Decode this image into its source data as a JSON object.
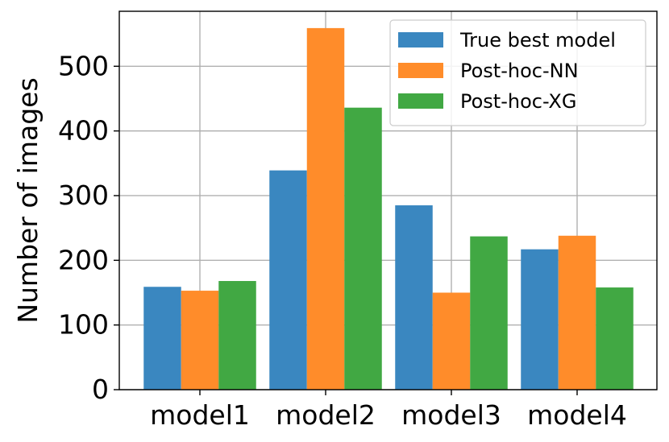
{
  "chart_data": {
    "type": "bar",
    "title": "",
    "xlabel": "",
    "ylabel": "Number of images",
    "categories": [
      "model1",
      "model2",
      "model3",
      "model4"
    ],
    "series": [
      {
        "name": "True best model",
        "color": "#3a87c0",
        "values": [
          159,
          339,
          285,
          217
        ]
      },
      {
        "name": "Post-hoc-NN",
        "color": "#ff8c2a",
        "values": [
          153,
          559,
          150,
          238
        ]
      },
      {
        "name": "Post-hoc-XG",
        "color": "#41a843",
        "values": [
          168,
          436,
          237,
          158
        ]
      }
    ],
    "ylim": [
      0,
      585
    ],
    "yticks": [
      0,
      100,
      200,
      300,
      400,
      500
    ],
    "grid": true,
    "legend_position": "top-right"
  }
}
